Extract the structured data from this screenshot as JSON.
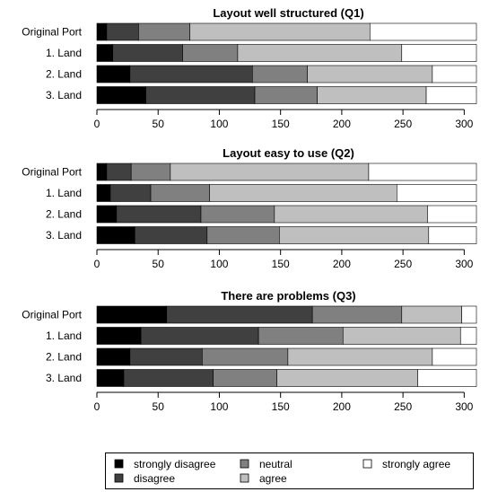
{
  "colors": {
    "strongly_disagree": "#000000",
    "disagree": "#404040",
    "neutral": "#808080",
    "agree": "#bfbfbf",
    "strongly_agree": "#ffffff"
  },
  "chart_data": [
    {
      "type": "bar",
      "orientation": "horizontal",
      "stacked": true,
      "title": "Layout well structured (Q1)",
      "categories": [
        "Original Port",
        "1. Land",
        "2. Land",
        "3. Land"
      ],
      "xlim": [
        0,
        310
      ],
      "xticks": [
        0,
        50,
        100,
        150,
        200,
        250,
        300
      ],
      "series": [
        {
          "name": "strongly disagree",
          "values": [
            8,
            13,
            27,
            40
          ]
        },
        {
          "name": "disagree",
          "values": [
            26,
            57,
            100,
            89
          ]
        },
        {
          "name": "neutral",
          "values": [
            42,
            45,
            45,
            51
          ]
        },
        {
          "name": "agree",
          "values": [
            147,
            134,
            102,
            89
          ]
        },
        {
          "name": "strongly agree",
          "values": [
            87,
            61,
            36,
            41
          ]
        }
      ]
    },
    {
      "type": "bar",
      "orientation": "horizontal",
      "stacked": true,
      "title": "Layout easy to use (Q2)",
      "categories": [
        "Original Port",
        "1. Land",
        "2. Land",
        "3. Land"
      ],
      "xlim": [
        0,
        310
      ],
      "xticks": [
        0,
        50,
        100,
        150,
        200,
        250,
        300
      ],
      "series": [
        {
          "name": "strongly disagree",
          "values": [
            8,
            11,
            16,
            31
          ]
        },
        {
          "name": "disagree",
          "values": [
            20,
            33,
            69,
            59
          ]
        },
        {
          "name": "neutral",
          "values": [
            32,
            48,
            60,
            59
          ]
        },
        {
          "name": "agree",
          "values": [
            162,
            153,
            125,
            122
          ]
        },
        {
          "name": "strongly agree",
          "values": [
            88,
            65,
            40,
            39
          ]
        }
      ]
    },
    {
      "type": "bar",
      "orientation": "horizontal",
      "stacked": true,
      "title": "There are problems (Q3)",
      "categories": [
        "Original Port",
        "1. Land",
        "2. Land",
        "3. Land"
      ],
      "xlim": [
        0,
        310
      ],
      "xticks": [
        0,
        50,
        100,
        150,
        200,
        250,
        300
      ],
      "series": [
        {
          "name": "strongly disagree",
          "values": [
            57,
            36,
            27,
            22
          ]
        },
        {
          "name": "disagree",
          "values": [
            119,
            96,
            59,
            73
          ]
        },
        {
          "name": "neutral",
          "values": [
            73,
            69,
            70,
            52
          ]
        },
        {
          "name": "agree",
          "values": [
            49,
            96,
            118,
            115
          ]
        },
        {
          "name": "strongly agree",
          "values": [
            12,
            13,
            36,
            48
          ]
        }
      ]
    }
  ],
  "legend": {
    "entries": [
      {
        "key": "strongly_disagree",
        "label": "strongly disagree"
      },
      {
        "key": "disagree",
        "label": "disagree"
      },
      {
        "key": "neutral",
        "label": "neutral"
      },
      {
        "key": "agree",
        "label": "agree"
      },
      {
        "key": "strongly_agree",
        "label": "strongly agree"
      }
    ]
  }
}
